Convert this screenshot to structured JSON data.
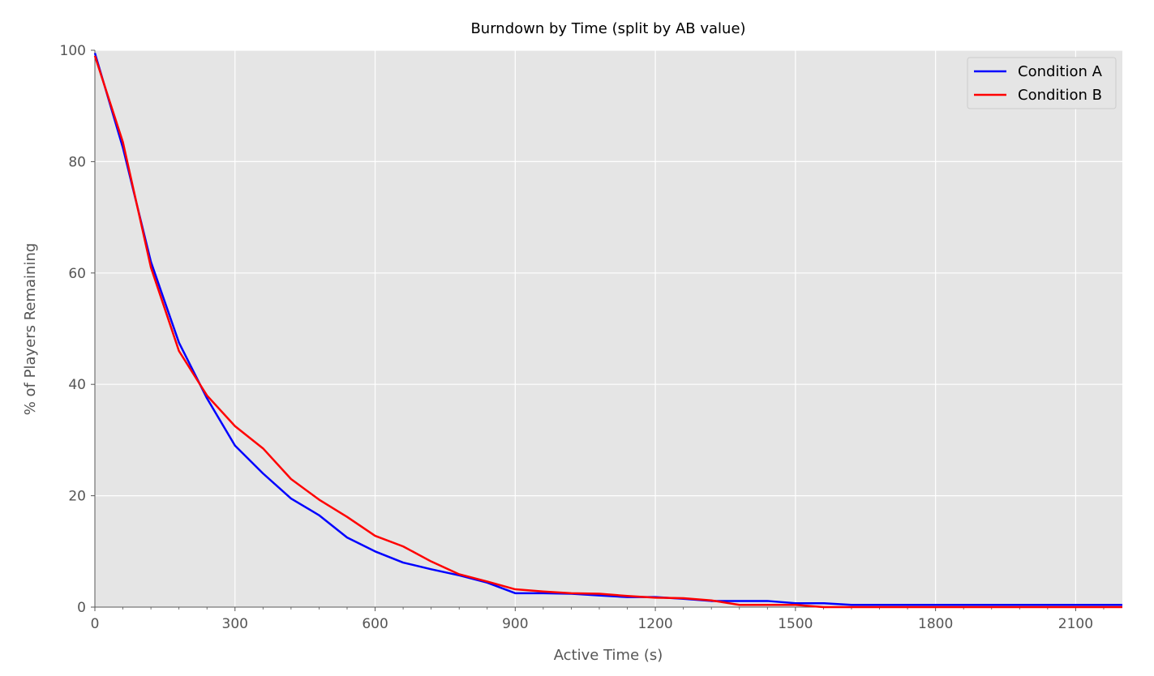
{
  "chart_data": {
    "type": "line",
    "title": "Burndown by Time (split by AB value)",
    "xlabel": "Active Time (s)",
    "ylabel": "% of Players Remaining",
    "xlim": [
      0,
      2200
    ],
    "ylim": [
      0,
      100
    ],
    "xticks": [
      0,
      300,
      600,
      900,
      1200,
      1500,
      1800,
      2100
    ],
    "yticks": [
      0,
      20,
      40,
      60,
      80,
      100
    ],
    "grid": true,
    "legend_position": "top-right",
    "background": "#e5e5e5",
    "series": [
      {
        "name": "Condition A",
        "color": "#0000ff",
        "x": [
          0,
          60,
          120,
          180,
          240,
          300,
          360,
          420,
          480,
          540,
          600,
          660,
          720,
          780,
          840,
          900,
          960,
          1020,
          1080,
          1140,
          1200,
          1260,
          1320,
          1380,
          1440,
          1500,
          1560,
          1620,
          1680,
          1740,
          1800,
          1860,
          1920,
          1980,
          2040,
          2100,
          2160,
          2200
        ],
        "y": [
          99.5,
          82.5,
          62,
          47.5,
          37.5,
          29,
          24,
          19.5,
          16.5,
          12.5,
          10,
          8,
          6.8,
          5.7,
          4.4,
          2.5,
          2.5,
          2.4,
          2.1,
          1.8,
          1.8,
          1.5,
          1.1,
          1.1,
          1.1,
          0.7,
          0.7,
          0.4,
          0.4,
          0.4,
          0.4,
          0.4,
          0.4,
          0.4,
          0.4,
          0.4,
          0.4,
          0.4
        ]
      },
      {
        "name": "Condition B",
        "color": "#ff0000",
        "x": [
          0,
          60,
          120,
          180,
          240,
          300,
          360,
          420,
          480,
          540,
          600,
          660,
          720,
          780,
          840,
          900,
          960,
          1020,
          1080,
          1140,
          1200,
          1260,
          1320,
          1380,
          1440,
          1500,
          1560,
          1620,
          1680,
          1740,
          1800,
          1860,
          1920,
          1980,
          2040,
          2100,
          2160,
          2200
        ],
        "y": [
          99,
          83.5,
          61,
          46,
          38,
          32.5,
          28.5,
          23,
          19.3,
          16.2,
          12.8,
          10.9,
          8.2,
          5.9,
          4.6,
          3.2,
          2.8,
          2.5,
          2.4,
          2,
          1.7,
          1.6,
          1.2,
          0.4,
          0.4,
          0.4,
          0,
          0,
          0,
          0,
          0,
          0,
          0,
          0,
          0,
          0,
          0,
          0
        ]
      }
    ]
  }
}
